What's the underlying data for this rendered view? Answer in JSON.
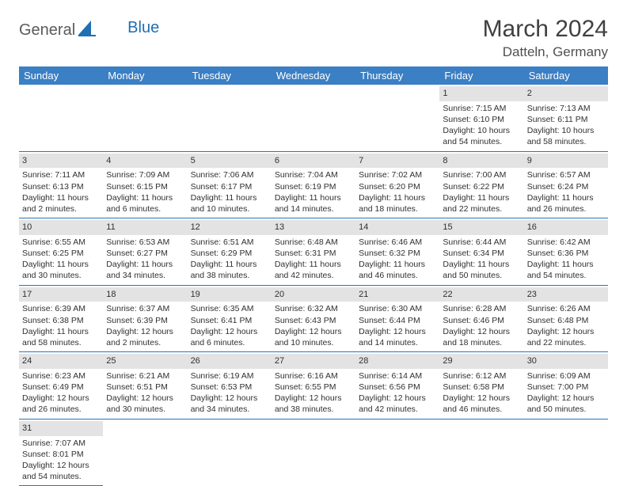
{
  "logo": {
    "part1": "General",
    "part2": "Blue"
  },
  "title": "March 2024",
  "location": "Datteln, Germany",
  "dayHeaders": [
    "Sunday",
    "Monday",
    "Tuesday",
    "Wednesday",
    "Thursday",
    "Friday",
    "Saturday"
  ],
  "colors": {
    "header_bg": "#3b7fc4",
    "header_text": "#ffffff",
    "row_divider": "#2b74b8",
    "daynum_bg": "#e3e3e3",
    "text": "#303030",
    "logo_gray": "#5a5a5a",
    "logo_blue": "#1f6fb2"
  },
  "weeks": [
    [
      null,
      null,
      null,
      null,
      null,
      {
        "n": "1",
        "sr": "Sunrise: 7:15 AM",
        "ss": "Sunset: 6:10 PM",
        "dl1": "Daylight: 10 hours",
        "dl2": "and 54 minutes."
      },
      {
        "n": "2",
        "sr": "Sunrise: 7:13 AM",
        "ss": "Sunset: 6:11 PM",
        "dl1": "Daylight: 10 hours",
        "dl2": "and 58 minutes."
      }
    ],
    [
      {
        "n": "3",
        "sr": "Sunrise: 7:11 AM",
        "ss": "Sunset: 6:13 PM",
        "dl1": "Daylight: 11 hours",
        "dl2": "and 2 minutes."
      },
      {
        "n": "4",
        "sr": "Sunrise: 7:09 AM",
        "ss": "Sunset: 6:15 PM",
        "dl1": "Daylight: 11 hours",
        "dl2": "and 6 minutes."
      },
      {
        "n": "5",
        "sr": "Sunrise: 7:06 AM",
        "ss": "Sunset: 6:17 PM",
        "dl1": "Daylight: 11 hours",
        "dl2": "and 10 minutes."
      },
      {
        "n": "6",
        "sr": "Sunrise: 7:04 AM",
        "ss": "Sunset: 6:19 PM",
        "dl1": "Daylight: 11 hours",
        "dl2": "and 14 minutes."
      },
      {
        "n": "7",
        "sr": "Sunrise: 7:02 AM",
        "ss": "Sunset: 6:20 PM",
        "dl1": "Daylight: 11 hours",
        "dl2": "and 18 minutes."
      },
      {
        "n": "8",
        "sr": "Sunrise: 7:00 AM",
        "ss": "Sunset: 6:22 PM",
        "dl1": "Daylight: 11 hours",
        "dl2": "and 22 minutes."
      },
      {
        "n": "9",
        "sr": "Sunrise: 6:57 AM",
        "ss": "Sunset: 6:24 PM",
        "dl1": "Daylight: 11 hours",
        "dl2": "and 26 minutes."
      }
    ],
    [
      {
        "n": "10",
        "sr": "Sunrise: 6:55 AM",
        "ss": "Sunset: 6:25 PM",
        "dl1": "Daylight: 11 hours",
        "dl2": "and 30 minutes."
      },
      {
        "n": "11",
        "sr": "Sunrise: 6:53 AM",
        "ss": "Sunset: 6:27 PM",
        "dl1": "Daylight: 11 hours",
        "dl2": "and 34 minutes."
      },
      {
        "n": "12",
        "sr": "Sunrise: 6:51 AM",
        "ss": "Sunset: 6:29 PM",
        "dl1": "Daylight: 11 hours",
        "dl2": "and 38 minutes."
      },
      {
        "n": "13",
        "sr": "Sunrise: 6:48 AM",
        "ss": "Sunset: 6:31 PM",
        "dl1": "Daylight: 11 hours",
        "dl2": "and 42 minutes."
      },
      {
        "n": "14",
        "sr": "Sunrise: 6:46 AM",
        "ss": "Sunset: 6:32 PM",
        "dl1": "Daylight: 11 hours",
        "dl2": "and 46 minutes."
      },
      {
        "n": "15",
        "sr": "Sunrise: 6:44 AM",
        "ss": "Sunset: 6:34 PM",
        "dl1": "Daylight: 11 hours",
        "dl2": "and 50 minutes."
      },
      {
        "n": "16",
        "sr": "Sunrise: 6:42 AM",
        "ss": "Sunset: 6:36 PM",
        "dl1": "Daylight: 11 hours",
        "dl2": "and 54 minutes."
      }
    ],
    [
      {
        "n": "17",
        "sr": "Sunrise: 6:39 AM",
        "ss": "Sunset: 6:38 PM",
        "dl1": "Daylight: 11 hours",
        "dl2": "and 58 minutes."
      },
      {
        "n": "18",
        "sr": "Sunrise: 6:37 AM",
        "ss": "Sunset: 6:39 PM",
        "dl1": "Daylight: 12 hours",
        "dl2": "and 2 minutes."
      },
      {
        "n": "19",
        "sr": "Sunrise: 6:35 AM",
        "ss": "Sunset: 6:41 PM",
        "dl1": "Daylight: 12 hours",
        "dl2": "and 6 minutes."
      },
      {
        "n": "20",
        "sr": "Sunrise: 6:32 AM",
        "ss": "Sunset: 6:43 PM",
        "dl1": "Daylight: 12 hours",
        "dl2": "and 10 minutes."
      },
      {
        "n": "21",
        "sr": "Sunrise: 6:30 AM",
        "ss": "Sunset: 6:44 PM",
        "dl1": "Daylight: 12 hours",
        "dl2": "and 14 minutes."
      },
      {
        "n": "22",
        "sr": "Sunrise: 6:28 AM",
        "ss": "Sunset: 6:46 PM",
        "dl1": "Daylight: 12 hours",
        "dl2": "and 18 minutes."
      },
      {
        "n": "23",
        "sr": "Sunrise: 6:26 AM",
        "ss": "Sunset: 6:48 PM",
        "dl1": "Daylight: 12 hours",
        "dl2": "and 22 minutes."
      }
    ],
    [
      {
        "n": "24",
        "sr": "Sunrise: 6:23 AM",
        "ss": "Sunset: 6:49 PM",
        "dl1": "Daylight: 12 hours",
        "dl2": "and 26 minutes."
      },
      {
        "n": "25",
        "sr": "Sunrise: 6:21 AM",
        "ss": "Sunset: 6:51 PM",
        "dl1": "Daylight: 12 hours",
        "dl2": "and 30 minutes."
      },
      {
        "n": "26",
        "sr": "Sunrise: 6:19 AM",
        "ss": "Sunset: 6:53 PM",
        "dl1": "Daylight: 12 hours",
        "dl2": "and 34 minutes."
      },
      {
        "n": "27",
        "sr": "Sunrise: 6:16 AM",
        "ss": "Sunset: 6:55 PM",
        "dl1": "Daylight: 12 hours",
        "dl2": "and 38 minutes."
      },
      {
        "n": "28",
        "sr": "Sunrise: 6:14 AM",
        "ss": "Sunset: 6:56 PM",
        "dl1": "Daylight: 12 hours",
        "dl2": "and 42 minutes."
      },
      {
        "n": "29",
        "sr": "Sunrise: 6:12 AM",
        "ss": "Sunset: 6:58 PM",
        "dl1": "Daylight: 12 hours",
        "dl2": "and 46 minutes."
      },
      {
        "n": "30",
        "sr": "Sunrise: 6:09 AM",
        "ss": "Sunset: 7:00 PM",
        "dl1": "Daylight: 12 hours",
        "dl2": "and 50 minutes."
      }
    ],
    [
      {
        "n": "31",
        "sr": "Sunrise: 7:07 AM",
        "ss": "Sunset: 8:01 PM",
        "dl1": "Daylight: 12 hours",
        "dl2": "and 54 minutes."
      },
      null,
      null,
      null,
      null,
      null,
      null
    ]
  ]
}
